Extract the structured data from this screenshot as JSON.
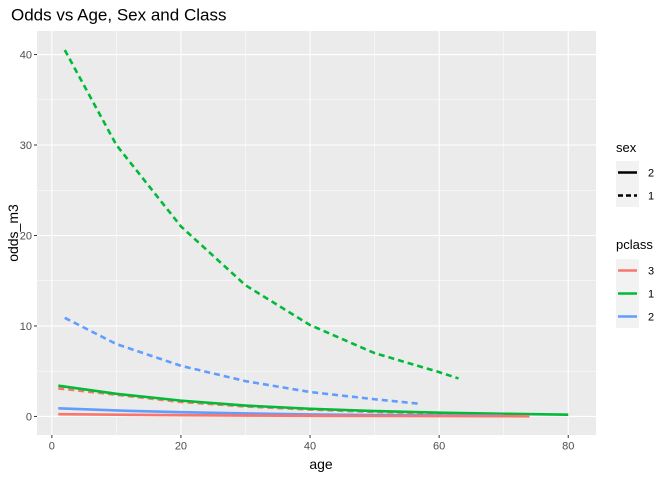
{
  "chart_data": {
    "type": "line",
    "title": "Odds vs Age, Sex and Class",
    "xlabel": "age",
    "ylabel": "odds_m3",
    "xlim": [
      -2.3,
      84.3
    ],
    "ylim": [
      -2.05,
      42.6
    ],
    "x_ticks": [
      0,
      20,
      40,
      60,
      80
    ],
    "y_ticks": [
      0,
      10,
      20,
      30,
      40
    ],
    "x_tick_labels": [
      "0",
      "20",
      "40",
      "60",
      "80"
    ],
    "y_tick_labels": [
      "0",
      "10",
      "20",
      "30",
      "40"
    ],
    "grid": true,
    "legend_position": "right",
    "legends": [
      {
        "title": "sex",
        "key": "sex",
        "entries": [
          {
            "label": "2",
            "linetype": "solid"
          },
          {
            "label": "1",
            "linetype": "dashed"
          }
        ]
      },
      {
        "title": "pclass",
        "key": "pclass",
        "entries": [
          {
            "label": "3",
            "color": "#F8766D"
          },
          {
            "label": "1",
            "color": "#00BA38"
          },
          {
            "label": "2",
            "color": "#619CFF"
          }
        ]
      }
    ],
    "series": [
      {
        "sex": "1",
        "pclass": "1",
        "linetype": "dashed",
        "color": "#00BA38",
        "x": [
          2,
          10,
          20,
          30,
          40,
          50,
          60,
          63
        ],
        "y": [
          40.5,
          30.0,
          21.0,
          14.5,
          10.1,
          7.0,
          4.9,
          4.2
        ]
      },
      {
        "sex": "1",
        "pclass": "2",
        "linetype": "dashed",
        "color": "#619CFF",
        "x": [
          2,
          10,
          20,
          30,
          40,
          50,
          57
        ],
        "y": [
          10.9,
          8.0,
          5.6,
          3.9,
          2.7,
          1.9,
          1.4
        ]
      },
      {
        "sex": "1",
        "pclass": "3",
        "linetype": "dashed",
        "color": "#F8766D",
        "x": [
          1,
          10,
          20,
          30,
          40,
          50,
          60,
          70,
          74
        ],
        "y": [
          3.1,
          2.4,
          1.6,
          1.1,
          0.76,
          0.5,
          0.34,
          0.23,
          0.2
        ]
      },
      {
        "sex": "2",
        "pclass": "1",
        "linetype": "solid",
        "color": "#00BA38",
        "x": [
          1,
          10,
          20,
          30,
          40,
          50,
          60,
          70,
          80
        ],
        "y": [
          3.4,
          2.5,
          1.75,
          1.2,
          0.85,
          0.6,
          0.42,
          0.3,
          0.2
        ]
      },
      {
        "sex": "2",
        "pclass": "2",
        "linetype": "solid",
        "color": "#619CFF",
        "x": [
          1,
          10,
          20,
          30,
          40,
          50,
          60,
          70
        ],
        "y": [
          0.9,
          0.66,
          0.47,
          0.33,
          0.23,
          0.16,
          0.11,
          0.08
        ]
      },
      {
        "sex": "2",
        "pclass": "3",
        "linetype": "solid",
        "color": "#F8766D",
        "x": [
          1,
          10,
          20,
          30,
          40,
          50,
          60,
          70,
          74
        ],
        "y": [
          0.25,
          0.19,
          0.14,
          0.1,
          0.07,
          0.05,
          0.04,
          0.03,
          0.02
        ]
      }
    ]
  }
}
